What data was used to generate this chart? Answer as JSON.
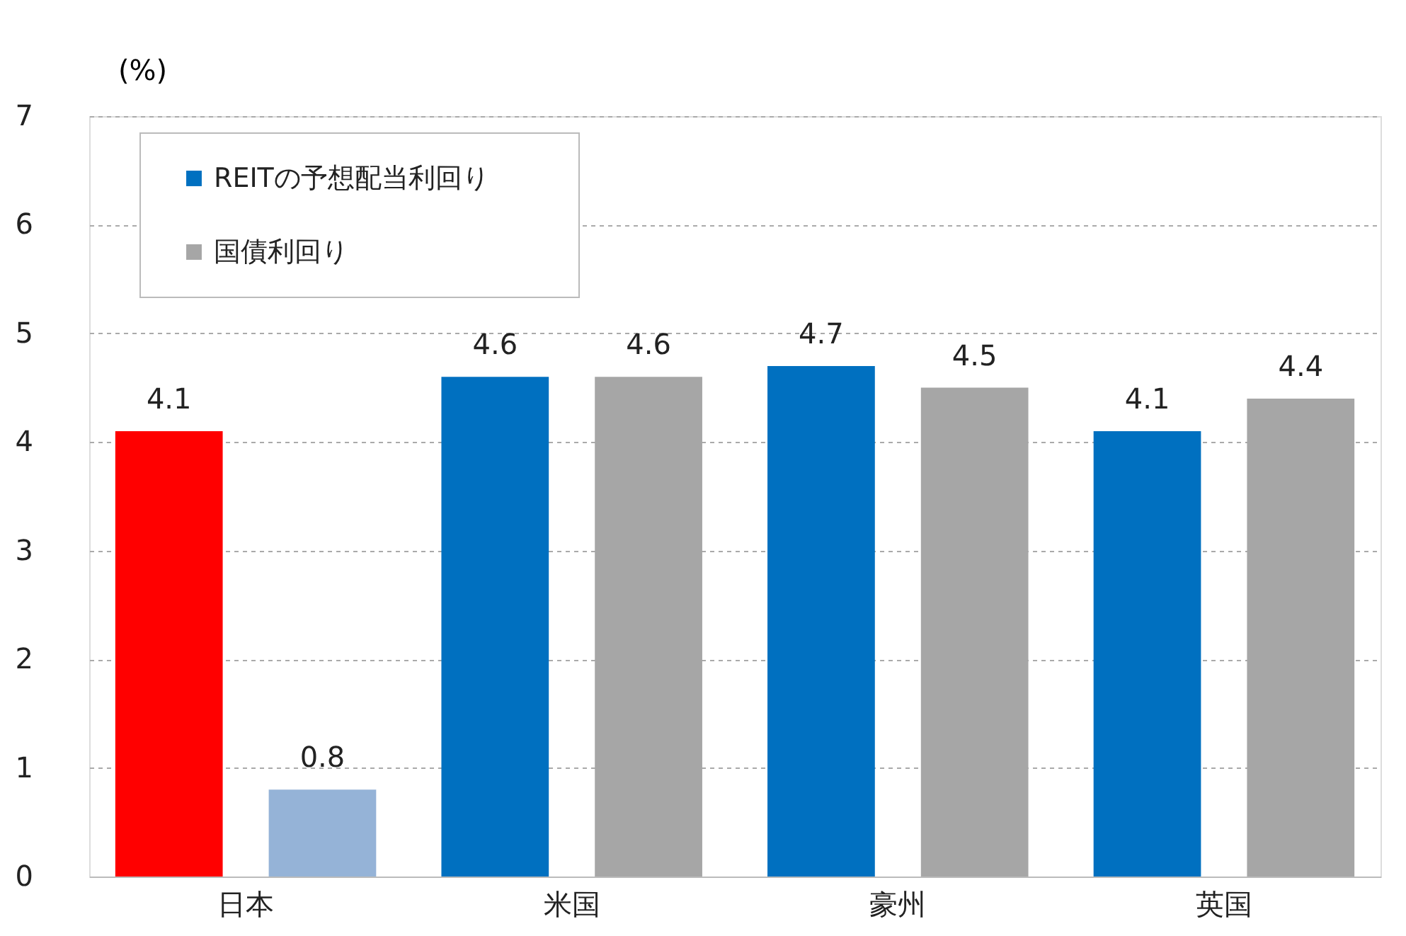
{
  "chart_data": {
    "type": "bar",
    "ylabel": "(%)",
    "categories": [
      "日本",
      "米国",
      "豪州",
      "英国"
    ],
    "series": [
      {
        "name": "REITの予想配当利回り",
        "color": "#0070c0",
        "colors": [
          "#ff0000",
          "#0070c0",
          "#0070c0",
          "#0070c0"
        ],
        "values": [
          4.1,
          4.6,
          4.7,
          4.1
        ]
      },
      {
        "name": "国債利回り",
        "color": "#a6a6a6",
        "colors": [
          "#95b3d7",
          "#a6a6a6",
          "#a6a6a6",
          "#a6a6a6"
        ],
        "values": [
          0.8,
          4.6,
          4.5,
          4.4
        ]
      }
    ],
    "ylim": [
      0,
      7
    ],
    "yticks": [
      0,
      1,
      2,
      3,
      4,
      5,
      6,
      7
    ],
    "grid": "y",
    "legend": "top left",
    "data_labels": true
  }
}
